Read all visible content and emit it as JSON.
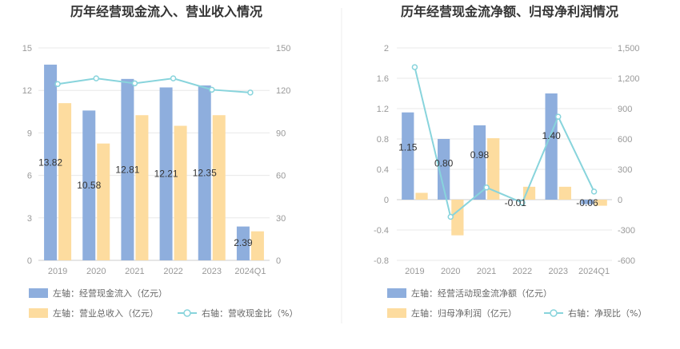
{
  "colors": {
    "bar1": "#8eaedd",
    "bar2": "#fddc9f",
    "line": "#88d4dc",
    "grid": "#e8e8e8",
    "axis": "#dddddd"
  },
  "chart_data": [
    {
      "type": "bar",
      "title": "历年经营现金流入、营业收入情况",
      "categories": [
        "2019",
        "2020",
        "2021",
        "2022",
        "2023",
        "2024Q1"
      ],
      "left_axis": {
        "min": 0,
        "max": 15,
        "ticks": [
          "0",
          "3",
          "6",
          "9",
          "12",
          "15"
        ],
        "tick_values": [
          0,
          3,
          6,
          9,
          12,
          15
        ]
      },
      "right_axis": {
        "min": 0,
        "max": 150,
        "ticks": [
          "0",
          "30",
          "60",
          "90",
          "120",
          "150"
        ],
        "tick_values": [
          0,
          30,
          60,
          90,
          120,
          150
        ]
      },
      "series": [
        {
          "name": "左轴：经营现金流入（亿元）",
          "kind": "bar",
          "axis": "left",
          "values": [
            13.82,
            10.58,
            12.81,
            12.21,
            12.35,
            2.39
          ],
          "labels": [
            "13.82",
            "10.58",
            "12.81",
            "12.21",
            "12.35",
            "2.39"
          ]
        },
        {
          "name": "左轴：营业总收入（亿元）",
          "kind": "bar",
          "axis": "left",
          "values": [
            11.1,
            8.25,
            10.25,
            9.5,
            10.25,
            2.05
          ]
        },
        {
          "name": "右轴：营收现金比（%）",
          "kind": "line",
          "axis": "right",
          "values": [
            124.5,
            128.5,
            125,
            128.5,
            120.5,
            118.5
          ]
        }
      ]
    },
    {
      "type": "bar",
      "title": "历年经营现金流净额、归母净利润情况",
      "categories": [
        "2019",
        "2020",
        "2021",
        "2022",
        "2023",
        "2024Q1"
      ],
      "left_axis": {
        "min": -0.8,
        "max": 2,
        "ticks": [
          "-0.8",
          "-0.4",
          "0",
          "0.4",
          "0.8",
          "1.2",
          "1.6",
          "2"
        ],
        "tick_values": [
          -0.8,
          -0.4,
          0,
          0.4,
          0.8,
          1.2,
          1.6,
          2
        ]
      },
      "right_axis": {
        "min": -600,
        "max": 1500,
        "ticks": [
          "-600",
          "-300",
          "0",
          "300",
          "600",
          "900",
          "1,200",
          "1,500"
        ],
        "tick_values": [
          -600,
          -300,
          0,
          300,
          600,
          900,
          1200,
          1500
        ]
      },
      "series": [
        {
          "name": "左轴：经营活动现金流净额（亿元）",
          "kind": "bar",
          "axis": "left",
          "values": [
            1.15,
            0.8,
            0.98,
            -0.01,
            1.4,
            -0.06
          ],
          "labels": [
            "1.15",
            "0.80",
            "0.98",
            "-0.01",
            "1.40",
            "-0.06"
          ]
        },
        {
          "name": "左轴：归母净利润（亿元）",
          "kind": "bar",
          "axis": "left",
          "values": [
            0.09,
            -0.47,
            0.81,
            0.17,
            0.17,
            -0.08
          ]
        },
        {
          "name": "右轴：净现比（%）",
          "kind": "line",
          "axis": "right",
          "values": [
            1310,
            -170,
            120,
            -30,
            820,
            80
          ]
        }
      ]
    }
  ]
}
